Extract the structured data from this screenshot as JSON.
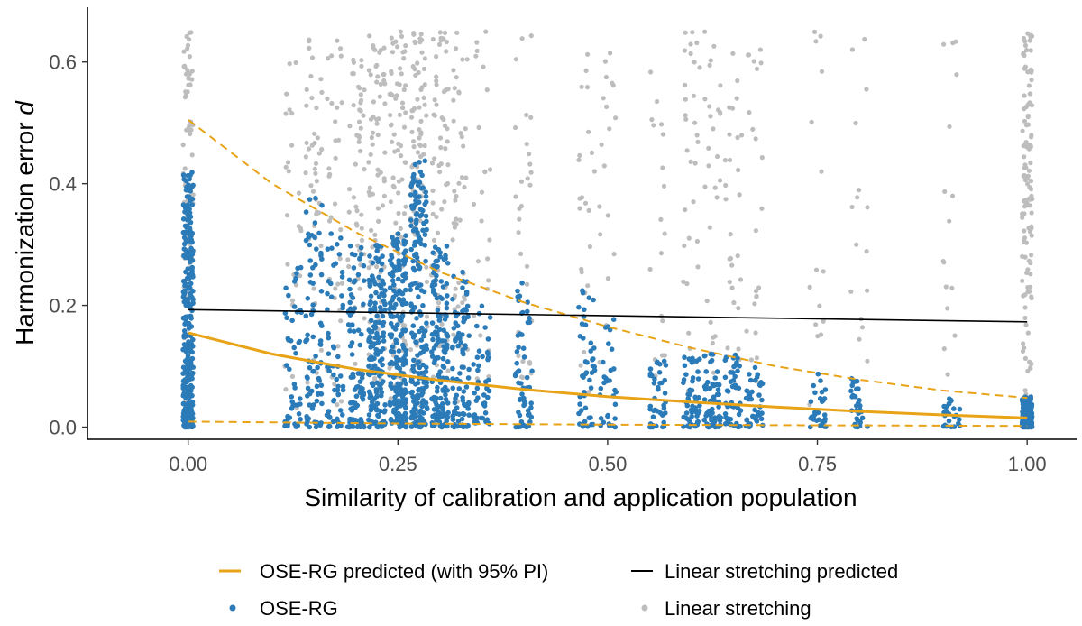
{
  "chart_data": {
    "type": "scatter",
    "title": "",
    "xlabel": "Similarity of calibration and application population",
    "ylabel_prefix": "Harmonization error ",
    "ylabel_symbol": "d",
    "xlim": [
      -0.12,
      1.06
    ],
    "ylim": [
      -0.02,
      0.69
    ],
    "grid": false,
    "legend_position": "bottom",
    "x_ticks": [
      0.0,
      0.25,
      0.5,
      0.75,
      1.0
    ],
    "x_tick_labels": [
      "0.00",
      "0.25",
      "0.50",
      "0.75",
      "1.00"
    ],
    "y_ticks": [
      0.0,
      0.2,
      0.4,
      0.6
    ],
    "y_tick_labels": [
      "0.0",
      "0.2",
      "0.4",
      "0.6"
    ],
    "colors": {
      "ose": "#2b7bb9",
      "linear": "#bdbdbd",
      "ose_line": "#e8a317",
      "linear_line": "#000000"
    },
    "scatter_clusters": [
      {
        "x": 0.0,
        "n_ose": 300,
        "ose_max": 0.42,
        "n_linear": 90
      },
      {
        "x": 0.125,
        "n_ose": 45,
        "ose_max": 0.28,
        "n_linear": 25
      },
      {
        "x": 0.15,
        "n_ose": 80,
        "ose_max": 0.4,
        "n_linear": 45
      },
      {
        "x": 0.175,
        "n_ose": 60,
        "ose_max": 0.32,
        "n_linear": 35
      },
      {
        "x": 0.2,
        "n_ose": 90,
        "ose_max": 0.3,
        "n_linear": 55
      },
      {
        "x": 0.225,
        "n_ose": 170,
        "ose_max": 0.3,
        "n_linear": 80
      },
      {
        "x": 0.25,
        "n_ose": 210,
        "ose_max": 0.32,
        "n_linear": 90
      },
      {
        "x": 0.275,
        "n_ose": 210,
        "ose_max": 0.44,
        "n_linear": 90
      },
      {
        "x": 0.3,
        "n_ose": 150,
        "ose_max": 0.3,
        "n_linear": 70
      },
      {
        "x": 0.325,
        "n_ose": 90,
        "ose_max": 0.26,
        "n_linear": 45
      },
      {
        "x": 0.35,
        "n_ose": 45,
        "ose_max": 0.2,
        "n_linear": 25
      },
      {
        "x": 0.4,
        "n_ose": 55,
        "ose_max": 0.26,
        "n_linear": 30
      },
      {
        "x": 0.475,
        "n_ose": 45,
        "ose_max": 0.23,
        "n_linear": 22
      },
      {
        "x": 0.5,
        "n_ose": 30,
        "ose_max": 0.18,
        "n_linear": 18
      },
      {
        "x": 0.56,
        "n_ose": 40,
        "ose_max": 0.12,
        "n_linear": 18
      },
      {
        "x": 0.6,
        "n_ose": 55,
        "ose_max": 0.12,
        "n_linear": 30
      },
      {
        "x": 0.625,
        "n_ose": 55,
        "ose_max": 0.12,
        "n_linear": 28
      },
      {
        "x": 0.65,
        "n_ose": 50,
        "ose_max": 0.12,
        "n_linear": 28
      },
      {
        "x": 0.675,
        "n_ose": 40,
        "ose_max": 0.1,
        "n_linear": 22
      },
      {
        "x": 0.75,
        "n_ose": 30,
        "ose_max": 0.09,
        "n_linear": 16
      },
      {
        "x": 0.8,
        "n_ose": 30,
        "ose_max": 0.08,
        "n_linear": 16
      },
      {
        "x": 0.91,
        "n_ose": 25,
        "ose_max": 0.05,
        "n_linear": 16
      },
      {
        "x": 1.0,
        "n_ose": 160,
        "ose_max": 0.05,
        "n_linear": 120
      }
    ],
    "lines": [
      {
        "name": "OSE-RG predicted (with 95% PI)",
        "style": "solid",
        "x": [
          0.0,
          0.1,
          0.2,
          0.3,
          0.4,
          0.5,
          0.6,
          0.7,
          0.8,
          0.9,
          1.0
        ],
        "y": [
          0.155,
          0.12,
          0.095,
          0.077,
          0.062,
          0.05,
          0.041,
          0.033,
          0.026,
          0.02,
          0.015
        ]
      },
      {
        "name": "OSE-RG upper 95% PI",
        "style": "dashed",
        "x": [
          0.0,
          0.1,
          0.2,
          0.3,
          0.4,
          0.5,
          0.6,
          0.7,
          0.8,
          0.9,
          1.0
        ],
        "y": [
          0.505,
          0.4,
          0.32,
          0.255,
          0.205,
          0.165,
          0.13,
          0.1,
          0.078,
          0.06,
          0.048
        ]
      },
      {
        "name": "OSE-RG lower 95% PI",
        "style": "dashed",
        "x": [
          0.0,
          0.25,
          0.5,
          0.75,
          1.0
        ],
        "y": [
          0.009,
          0.006,
          0.004,
          0.003,
          0.002
        ]
      },
      {
        "name": "Linear stretching predicted",
        "style": "solid",
        "x": [
          0.0,
          1.0
        ],
        "y": [
          0.193,
          0.173
        ]
      }
    ],
    "legend": [
      {
        "label": "OSE-RG predicted (with 95% PI)",
        "symbol": "line",
        "color": "#e8a317"
      },
      {
        "label": "Linear stretching predicted",
        "symbol": "line",
        "color": "#000000"
      },
      {
        "label": "OSE-RG",
        "symbol": "point",
        "color": "#2b7bb9"
      },
      {
        "label": "Linear stretching",
        "symbol": "point",
        "color": "#bdbdbd"
      }
    ]
  }
}
